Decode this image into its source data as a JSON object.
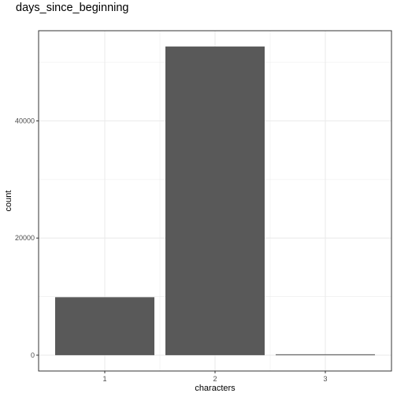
{
  "chart_data": {
    "type": "bar",
    "title": "days_since_beginning",
    "xlabel": "characters",
    "ylabel": "count",
    "categories": [
      "1",
      "2",
      "3"
    ],
    "values": [
      9900,
      52700,
      150
    ],
    "ylim": [
      -2700,
      55400
    ],
    "yticks": [
      0,
      20000,
      40000
    ],
    "ytick_labels": [
      "0",
      "20000",
      "40000"
    ],
    "grid": true,
    "bar_color": "#595959",
    "grid_color": "#ebebeb"
  }
}
